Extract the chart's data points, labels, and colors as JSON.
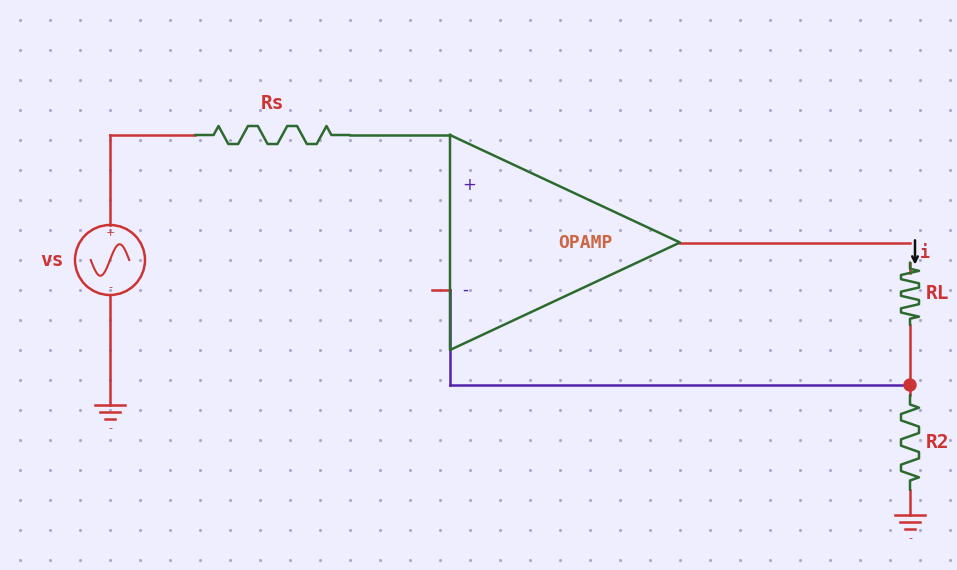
{
  "bg_color": "#eeeeff",
  "dot_color": "#aaaacc",
  "red": "#cc3333",
  "green": "#2d6a2d",
  "purple": "#5522aa",
  "dark": "#111111",
  "opamp_text_color": "#cc6644",
  "title": "OPAMP",
  "vs_label": "vs",
  "rs_label": "Rs",
  "rl_label": "RL",
  "r2_label": "R2",
  "i_label": "i",
  "figw": 9.57,
  "figh": 5.7
}
